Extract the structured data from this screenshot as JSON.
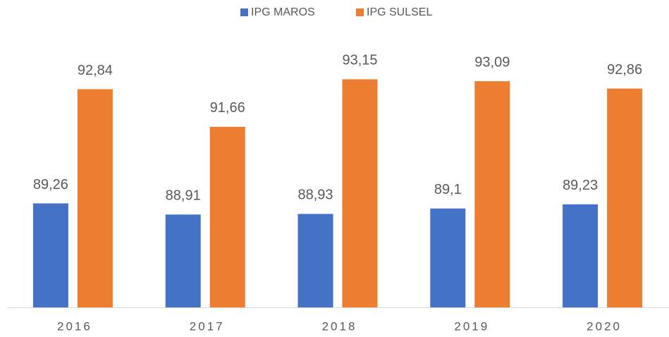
{
  "chart_data": {
    "type": "bar",
    "categories": [
      "2016",
      "2017",
      "2018",
      "2019",
      "2020"
    ],
    "series": [
      {
        "name": "IPG MAROS",
        "color": "#4472c4",
        "values": [
          89.26,
          88.91,
          88.93,
          89.1,
          89.23
        ],
        "value_labels": [
          "89,26",
          "88,91",
          "88,93",
          "89,1",
          "89,23"
        ]
      },
      {
        "name": "IPG SULSEL",
        "color": "#ed7d31",
        "values": [
          92.84,
          91.66,
          93.15,
          93.09,
          92.86
        ],
        "value_labels": [
          "92,84",
          "91,66",
          "93,15",
          "93,09",
          "92,86"
        ]
      }
    ],
    "ylim": [
      86,
      94
    ],
    "legend": "top"
  }
}
